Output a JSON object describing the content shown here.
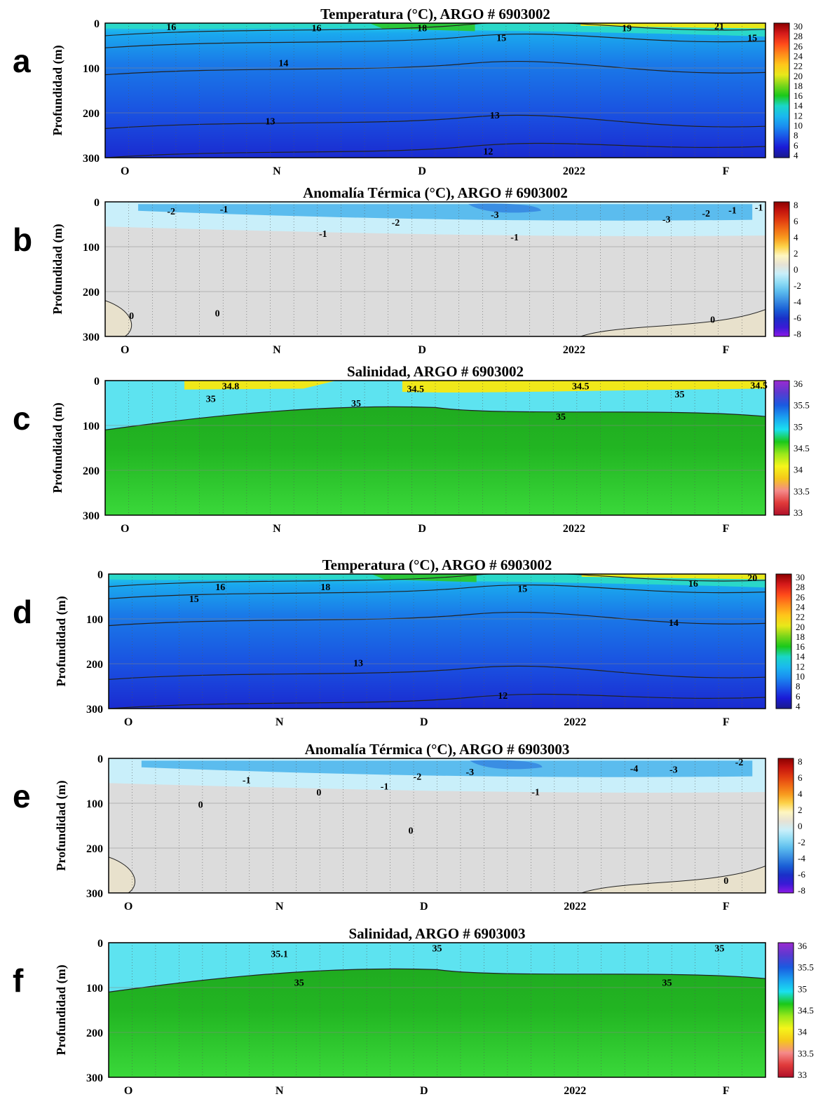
{
  "x_ticks": [
    "O",
    "N",
    "D",
    "2022",
    "F"
  ],
  "y_label": "Profundidad (m)",
  "y_ticks": [
    "0",
    "100",
    "200",
    "300"
  ],
  "colors": {
    "land_beige": "#e8e1cc",
    "neutral_gray": "#dcdcdc",
    "light_cyan": "#c9effa",
    "frame": "#000000"
  },
  "colorbars": {
    "temperature": {
      "ticks": [
        "30",
        "28",
        "26",
        "24",
        "22",
        "20",
        "18",
        "16",
        "14",
        "12",
        "10",
        "8",
        "6",
        "4"
      ],
      "stops": [
        "#8b0000",
        "#d61a1a",
        "#ff4a1a",
        "#ff8c1a",
        "#ffc61a",
        "#e8e81a",
        "#7cd61a",
        "#1ac91a",
        "#1ad6c9",
        "#1ab8ef",
        "#1a8cf0",
        "#1a52e6",
        "#1a1ad6",
        "#1a1a8c"
      ]
    },
    "anomaly": {
      "ticks": [
        "8",
        "6",
        "4",
        "2",
        "0",
        "-2",
        "-4",
        "-6",
        "-8"
      ],
      "stops": [
        "#8b0000",
        "#c4150d",
        "#e03a10",
        "#f06a15",
        "#f89a1e",
        "#fdd34a",
        "#fef6c0",
        "#e6e2d5",
        "#c9effa",
        "#8fdcf5",
        "#5bbcee",
        "#3a8ee3",
        "#1a5fd6",
        "#1a2fc8",
        "#3a1ad6",
        "#8c1ae6"
      ]
    },
    "salinity": {
      "ticks": [
        "36",
        "35.5",
        "35",
        "34.5",
        "34",
        "33.5",
        "33"
      ],
      "stops": [
        "#9b2ad0",
        "#5a3ad0",
        "#1a5ae0",
        "#1aa0f0",
        "#1ae0f0",
        "#1ac81a",
        "#9ae81a",
        "#f5f51a",
        "#f5c81a",
        "#f58a8a",
        "#e03a3a",
        "#b0102a"
      ]
    }
  },
  "panels": [
    {
      "letter": "a",
      "title": "Temperatura (°C), ARGO #  6903002",
      "kind": "temperature",
      "contour_labels": [
        {
          "text": "16",
          "x": 0.1,
          "y": 8
        },
        {
          "text": "16",
          "x": 0.32,
          "y": 10
        },
        {
          "text": "18",
          "x": 0.48,
          "y": 10
        },
        {
          "text": "15",
          "x": 0.6,
          "y": 32
        },
        {
          "text": "19",
          "x": 0.79,
          "y": 10
        },
        {
          "text": "21",
          "x": 0.93,
          "y": 6
        },
        {
          "text": "15",
          "x": 0.98,
          "y": 32
        },
        {
          "text": "14",
          "x": 0.27,
          "y": 88
        },
        {
          "text": "13",
          "x": 0.25,
          "y": 218
        },
        {
          "text": "13",
          "x": 0.59,
          "y": 205
        },
        {
          "text": "12",
          "x": 0.58,
          "y": 285
        }
      ]
    },
    {
      "letter": "b",
      "title": "Anomalía Térmica (°C), ARGO #  6903002",
      "kind": "anomaly",
      "contour_labels": [
        {
          "text": "-2",
          "x": 0.1,
          "y": 20
        },
        {
          "text": "-1",
          "x": 0.18,
          "y": 16
        },
        {
          "text": "-2",
          "x": 0.44,
          "y": 45
        },
        {
          "text": "-3",
          "x": 0.59,
          "y": 28
        },
        {
          "text": "-1",
          "x": 0.33,
          "y": 70
        },
        {
          "text": "-1",
          "x": 0.62,
          "y": 78
        },
        {
          "text": "-3",
          "x": 0.85,
          "y": 38
        },
        {
          "text": "-2",
          "x": 0.91,
          "y": 25
        },
        {
          "text": "-1",
          "x": 0.95,
          "y": 18
        },
        {
          "text": "-1",
          "x": 0.99,
          "y": 12
        },
        {
          "text": "0",
          "x": 0.04,
          "y": 253
        },
        {
          "text": "0",
          "x": 0.17,
          "y": 248
        },
        {
          "text": "0",
          "x": 0.92,
          "y": 262
        }
      ]
    },
    {
      "letter": "c",
      "title": "Salinidad, ARGO #  6903002",
      "kind": "salinity",
      "contour_labels": [
        {
          "text": "34.8",
          "x": 0.19,
          "y": 12
        },
        {
          "text": "35",
          "x": 0.16,
          "y": 40
        },
        {
          "text": "35",
          "x": 0.38,
          "y": 50
        },
        {
          "text": "34.5",
          "x": 0.47,
          "y": 18
        },
        {
          "text": "34.5",
          "x": 0.72,
          "y": 12
        },
        {
          "text": "35",
          "x": 0.69,
          "y": 80
        },
        {
          "text": "35",
          "x": 0.87,
          "y": 30
        },
        {
          "text": "34.5",
          "x": 0.99,
          "y": 10
        }
      ]
    },
    {
      "letter": "d",
      "title": "Temperatura (°C), ARGO #  6903002",
      "kind": "temperature",
      "contour_labels": [
        {
          "text": "16",
          "x": 0.17,
          "y": 28
        },
        {
          "text": "15",
          "x": 0.13,
          "y": 55
        },
        {
          "text": "18",
          "x": 0.33,
          "y": 28
        },
        {
          "text": "15",
          "x": 0.63,
          "y": 32
        },
        {
          "text": "16",
          "x": 0.89,
          "y": 20
        },
        {
          "text": "20",
          "x": 0.98,
          "y": 8
        },
        {
          "text": "14",
          "x": 0.86,
          "y": 108
        },
        {
          "text": "13",
          "x": 0.38,
          "y": 198
        },
        {
          "text": "12",
          "x": 0.6,
          "y": 270
        }
      ]
    },
    {
      "letter": "e",
      "title": "Anomalía Térmica (°C), ARGO #  6903003",
      "kind": "anomaly",
      "contour_labels": [
        {
          "text": "-1",
          "x": 0.21,
          "y": 48
        },
        {
          "text": "0",
          "x": 0.32,
          "y": 75
        },
        {
          "text": "-1",
          "x": 0.42,
          "y": 62
        },
        {
          "text": "-2",
          "x": 0.47,
          "y": 40
        },
        {
          "text": "-3",
          "x": 0.55,
          "y": 30
        },
        {
          "text": "-1",
          "x": 0.65,
          "y": 74
        },
        {
          "text": "-4",
          "x": 0.8,
          "y": 22
        },
        {
          "text": "-3",
          "x": 0.86,
          "y": 24
        },
        {
          "text": "-2",
          "x": 0.96,
          "y": 8
        },
        {
          "text": "0",
          "x": 0.14,
          "y": 102
        },
        {
          "text": "0",
          "x": 0.46,
          "y": 160
        },
        {
          "text": "0",
          "x": 0.94,
          "y": 272
        }
      ]
    },
    {
      "letter": "f",
      "title": "Salinidad, ARGO #  6903003",
      "kind": "salinity",
      "contour_labels": [
        {
          "text": "35.1",
          "x": 0.26,
          "y": 24
        },
        {
          "text": "35",
          "x": 0.5,
          "y": 12
        },
        {
          "text": "35",
          "x": 0.93,
          "y": 12
        },
        {
          "text": "35",
          "x": 0.29,
          "y": 88
        },
        {
          "text": "35",
          "x": 0.85,
          "y": 88
        }
      ]
    }
  ],
  "chart_data": [
    {
      "type": "heatmap",
      "panel": "a",
      "title": "Temperatura (°C), ARGO #  6903002",
      "ylabel": "Profundidad (m)",
      "ylim": [
        300,
        0
      ],
      "x_ticks": [
        "O",
        "N",
        "D",
        "2022",
        "F"
      ],
      "colorbar": {
        "min": 4,
        "max": 30
      },
      "contours": [
        12,
        13,
        14,
        15,
        16,
        18,
        19,
        21
      ],
      "grid": true
    },
    {
      "type": "heatmap",
      "panel": "b",
      "title": "Anomalía Térmica (°C), ARGO #  6903002",
      "ylabel": "Profundidad (m)",
      "ylim": [
        300,
        0
      ],
      "x_ticks": [
        "O",
        "N",
        "D",
        "2022",
        "F"
      ],
      "colorbar": {
        "min": -8,
        "max": 8
      },
      "contours": [
        -3,
        -2,
        -1,
        0
      ],
      "grid": true
    },
    {
      "type": "heatmap",
      "panel": "c",
      "title": "Salinidad, ARGO #  6903002",
      "ylabel": "Profundidad (m)",
      "ylim": [
        300,
        0
      ],
      "x_ticks": [
        "O",
        "N",
        "D",
        "2022",
        "F"
      ],
      "colorbar": {
        "min": 33,
        "max": 36
      },
      "contours": [
        34.5,
        34.8,
        35
      ],
      "grid": true
    },
    {
      "type": "heatmap",
      "panel": "d",
      "title": "Temperatura (°C), ARGO #  6903002",
      "ylabel": "Profundidad (m)",
      "ylim": [
        300,
        0
      ],
      "x_ticks": [
        "O",
        "N",
        "D",
        "2022",
        "F"
      ],
      "colorbar": {
        "min": 4,
        "max": 30
      },
      "contours": [
        12,
        13,
        14,
        15,
        16,
        18,
        20
      ],
      "grid": true
    },
    {
      "type": "heatmap",
      "panel": "e",
      "title": "Anomalía Térmica (°C), ARGO #  6903003",
      "ylabel": "Profundidad (m)",
      "ylim": [
        300,
        0
      ],
      "x_ticks": [
        "O",
        "N",
        "D",
        "2022",
        "F"
      ],
      "colorbar": {
        "min": -8,
        "max": 8
      },
      "contours": [
        -4,
        -3,
        -2,
        -1,
        0
      ],
      "grid": true
    },
    {
      "type": "heatmap",
      "panel": "f",
      "title": "Salinidad, ARGO #  6903003",
      "ylabel": "Profundidad (m)",
      "ylim": [
        300,
        0
      ],
      "x_ticks": [
        "O",
        "N",
        "D",
        "2022",
        "F"
      ],
      "colorbar": {
        "min": 33,
        "max": 36
      },
      "contours": [
        35,
        35.1
      ],
      "grid": true
    }
  ]
}
